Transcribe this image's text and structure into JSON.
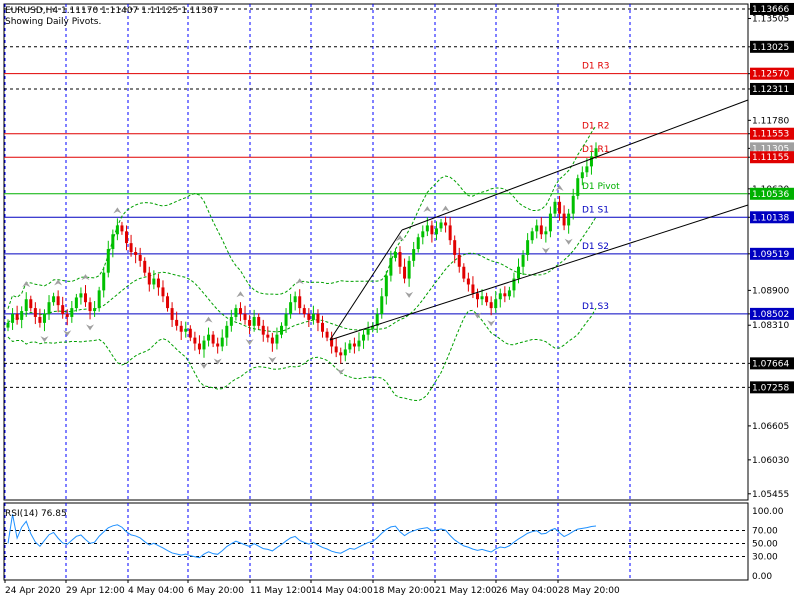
{
  "header": {
    "symbol_line": "EURUSD,H4  1.11170 1.11407 1.11125 1.11307",
    "subtitle": "Showing Daily Pivots."
  },
  "price_axis_labels": [
    "1.13666",
    "1.13505",
    "1.13025",
    "1.12570",
    "1.12311",
    "1.11780",
    "1.11553",
    "1.11305",
    "1.11155",
    "1.10620",
    "1.10536",
    "1.10138",
    "1.09519",
    "1.08900",
    "1.08502",
    "1.08310",
    "1.07664",
    "1.07258",
    "1.06605",
    "1.06030",
    "1.05455"
  ],
  "highlighted_labels": [
    {
      "text": "1.13666",
      "kind": "black"
    },
    {
      "text": "1.13025",
      "kind": "black"
    },
    {
      "text": "1.12570",
      "kind": "red"
    },
    {
      "text": "1.12311",
      "kind": "black"
    },
    {
      "text": "1.11553",
      "kind": "red"
    },
    {
      "text": "1.11305",
      "kind": "gray"
    },
    {
      "text": "1.11155",
      "kind": "red"
    },
    {
      "text": "1.10536",
      "kind": "green"
    },
    {
      "text": "1.10138",
      "kind": "blue"
    },
    {
      "text": "1.09519",
      "kind": "blue"
    },
    {
      "text": "1.08502",
      "kind": "blue"
    },
    {
      "text": "1.07664",
      "kind": "black"
    },
    {
      "text": "1.07258",
      "kind": "black"
    }
  ],
  "pivots": [
    {
      "label": "D1  R3",
      "value": 1.1257,
      "color": "#e00000"
    },
    {
      "label": "D1  R2",
      "value": 1.11553,
      "color": "#e00000"
    },
    {
      "label": "D1  R1",
      "value": 1.11155,
      "color": "#e00000"
    },
    {
      "label": "D1  Pivot",
      "value": 1.10536,
      "color": "#00b000"
    },
    {
      "label": "D1  S1",
      "value": 1.10138,
      "color": "#0000c0"
    },
    {
      "label": "D1  S2",
      "value": 1.09519,
      "color": "#0000c0"
    },
    {
      "label": "D1  S3",
      "value": 1.08502,
      "color": "#0000c0"
    }
  ],
  "black_levels": [
    1.13666,
    1.13025,
    1.12311,
    1.07664,
    1.07258
  ],
  "rsi": {
    "title": "RSI(14) 76.85",
    "axis_labels": [
      "100.00",
      "70.00",
      "50.00",
      "30.00",
      "0.00"
    ]
  },
  "time_labels": [
    "24 Apr 2020",
    "29 Apr 12:00",
    "4 May 04:00",
    "6 May 20:00",
    "11 May 12:00",
    "14 May 04:00",
    "18 May 20:00",
    "21 May 12:00",
    "26 May 04:00",
    "28 May 20:00"
  ],
  "colors": {
    "bull": "#00c000",
    "bear": "#e00000",
    "grid": "#0000ff",
    "bands": "#00a000",
    "rsi_line": "#1e90ff",
    "fractal": "#a0a0a0",
    "channel": "#000000"
  },
  "chart_data": {
    "type": "candlestick",
    "symbol": "EURUSD",
    "timeframe": "H4",
    "last_bar": {
      "open": 1.1117,
      "high": 1.11407,
      "low": 1.11125,
      "close": 1.11307
    },
    "ylim": [
      1.0535,
      1.1375
    ],
    "close": [
      1.0835,
      1.085,
      1.084,
      1.0855,
      1.0875,
      1.086,
      1.0845,
      1.0835,
      1.085,
      1.087,
      1.088,
      1.0865,
      1.085,
      1.0845,
      1.086,
      1.0878,
      1.0885,
      1.087,
      1.0855,
      1.086,
      1.089,
      1.092,
      1.096,
      1.0985,
      1.1,
      1.099,
      1.097,
      1.0955,
      1.095,
      1.094,
      1.092,
      1.09,
      1.091,
      1.0895,
      1.088,
      1.086,
      1.084,
      1.083,
      1.082,
      1.0825,
      1.081,
      1.08,
      1.079,
      1.0805,
      1.0815,
      1.08,
      1.0795,
      1.081,
      1.083,
      1.0845,
      1.086,
      1.085,
      1.084,
      1.083,
      1.0845,
      1.083,
      1.0815,
      1.081,
      1.08,
      1.0815,
      1.083,
      1.085,
      1.087,
      1.088,
      1.086,
      1.085,
      1.084,
      1.085,
      1.0835,
      1.082,
      1.081,
      1.0795,
      1.0785,
      1.078,
      1.079,
      1.08,
      1.0795,
      1.0805,
      1.0815,
      1.0825,
      1.083,
      1.085,
      1.088,
      1.0915,
      1.0945,
      1.0955,
      1.093,
      1.091,
      1.094,
      1.096,
      1.098,
      1.099,
      1.1,
      1.0985,
      1.0995,
      1.1005,
      1.1,
      1.0975,
      1.095,
      1.093,
      1.091,
      1.09,
      1.0885,
      1.0875,
      1.088,
      1.087,
      1.086,
      1.0875,
      1.0885,
      1.088,
      1.089,
      1.091,
      1.093,
      1.095,
      1.0975,
      1.099,
      1.1,
      1.0985,
      1.099,
      1.102,
      1.104,
      1.102,
      1.1,
      1.102,
      1.105,
      1.108,
      1.109,
      1.11,
      1.1117,
      1.1131
    ]
  }
}
